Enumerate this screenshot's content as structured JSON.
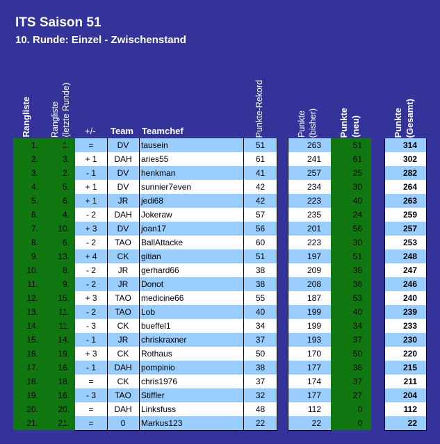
{
  "title": "ITS Saison 51",
  "subtitle": "10. Runde: Einzel - Zwischenstand",
  "headers": {
    "rangliste": "Rangliste",
    "rangliste_letzte_1": "Rangliste",
    "rangliste_letzte_2": "(letzte Runde)",
    "diff": "+/-",
    "team": "Team",
    "teamchef": "Teamchef",
    "rekord": "Punkte-Rekord",
    "bisher_1": "Punkte",
    "bisher_2": "(bisher)",
    "neu_1": "Punkte",
    "neu_2": "(neu)",
    "gesamt_1": "Punkte",
    "gesamt_2": "(Gesamt)"
  },
  "rows": [
    {
      "rank": "1.",
      "prev": "1.",
      "diff": "=",
      "team": "DV",
      "chef": "tausein",
      "rekord": "51",
      "bisher": "263",
      "neu": "51",
      "gesamt": "314"
    },
    {
      "rank": "2.",
      "prev": "3.",
      "diff": "+ 1",
      "team": "DAH",
      "chef": "aries55",
      "rekord": "61",
      "bisher": "241",
      "neu": "61",
      "gesamt": "302"
    },
    {
      "rank": "3.",
      "prev": "2.",
      "diff": "- 1",
      "team": "DV",
      "chef": "henkman",
      "rekord": "41",
      "bisher": "257",
      "neu": "25",
      "gesamt": "282"
    },
    {
      "rank": "4.",
      "prev": "5.",
      "diff": "+ 1",
      "team": "DV",
      "chef": "sunnier7even",
      "rekord": "42",
      "bisher": "234",
      "neu": "30",
      "gesamt": "264"
    },
    {
      "rank": "5.",
      "prev": "6.",
      "diff": "+ 1",
      "team": "JR",
      "chef": "jedi68",
      "rekord": "42",
      "bisher": "223",
      "neu": "40",
      "gesamt": "263"
    },
    {
      "rank": "6.",
      "prev": "4.",
      "diff": "- 2",
      "team": "DAH",
      "chef": "Jokeraw",
      "rekord": "57",
      "bisher": "235",
      "neu": "24",
      "gesamt": "259"
    },
    {
      "rank": "7.",
      "prev": "10.",
      "diff": "+ 3",
      "team": "DV",
      "chef": "joan17",
      "rekord": "56",
      "bisher": "201",
      "neu": "56",
      "gesamt": "257"
    },
    {
      "rank": "8.",
      "prev": "6.",
      "diff": "- 2",
      "team": "TAO",
      "chef": "BallAttacke",
      "rekord": "60",
      "bisher": "223",
      "neu": "30",
      "gesamt": "253"
    },
    {
      "rank": "9.",
      "prev": "13.",
      "diff": "+ 4",
      "team": "CK",
      "chef": "gitian",
      "rekord": "51",
      "bisher": "197",
      "neu": "51",
      "gesamt": "248"
    },
    {
      "rank": "10.",
      "prev": "8.",
      "diff": "- 2",
      "team": "JR",
      "chef": "gerhard66",
      "rekord": "38",
      "bisher": "209",
      "neu": "38",
      "gesamt": "247"
    },
    {
      "rank": "11.",
      "prev": "9.",
      "diff": "- 2",
      "team": "JR",
      "chef": "Donot",
      "rekord": "38",
      "bisher": "208",
      "neu": "38",
      "gesamt": "246"
    },
    {
      "rank": "12.",
      "prev": "15.",
      "diff": "+ 3",
      "team": "TAO",
      "chef": "medicine66",
      "rekord": "55",
      "bisher": "187",
      "neu": "53",
      "gesamt": "240"
    },
    {
      "rank": "13.",
      "prev": "11.",
      "diff": "- 2",
      "team": "TAO",
      "chef": "Lob",
      "rekord": "40",
      "bisher": "199",
      "neu": "40",
      "gesamt": "239"
    },
    {
      "rank": "14.",
      "prev": "11.",
      "diff": "- 3",
      "team": "CK",
      "chef": "bueffel1",
      "rekord": "34",
      "bisher": "199",
      "neu": "34",
      "gesamt": "233"
    },
    {
      "rank": "15.",
      "prev": "14.",
      "diff": "- 1",
      "team": "JR",
      "chef": "chriskraxner",
      "rekord": "37",
      "bisher": "193",
      "neu": "37",
      "gesamt": "230"
    },
    {
      "rank": "16.",
      "prev": "19.",
      "diff": "+ 3",
      "team": "CK",
      "chef": "Rothaus",
      "rekord": "50",
      "bisher": "170",
      "neu": "50",
      "gesamt": "220"
    },
    {
      "rank": "17.",
      "prev": "16.",
      "diff": "- 1",
      "team": "DAH",
      "chef": "pompinio",
      "rekord": "38",
      "bisher": "177",
      "neu": "38",
      "gesamt": "215"
    },
    {
      "rank": "18.",
      "prev": "18.",
      "diff": "=",
      "team": "CK",
      "chef": "chris1976",
      "rekord": "37",
      "bisher": "174",
      "neu": "37",
      "gesamt": "211"
    },
    {
      "rank": "19.",
      "prev": "16.",
      "diff": "- 3",
      "team": "TAO",
      "chef": "Stiffler",
      "rekord": "32",
      "bisher": "177",
      "neu": "27",
      "gesamt": "204"
    },
    {
      "rank": "20.",
      "prev": "20.",
      "diff": "=",
      "team": "DAH",
      "chef": "Linksfuss",
      "rekord": "48",
      "bisher": "112",
      "neu": "0",
      "gesamt": "112"
    },
    {
      "rank": "21.",
      "prev": "21.",
      "diff": "=",
      "team": "0",
      "chef": "Markus123",
      "rekord": "22",
      "bisher": "22",
      "neu": "0",
      "gesamt": "22"
    }
  ],
  "colors": {
    "background": "#333399",
    "green_column": "#117711",
    "stripe": "#99ccff"
  }
}
